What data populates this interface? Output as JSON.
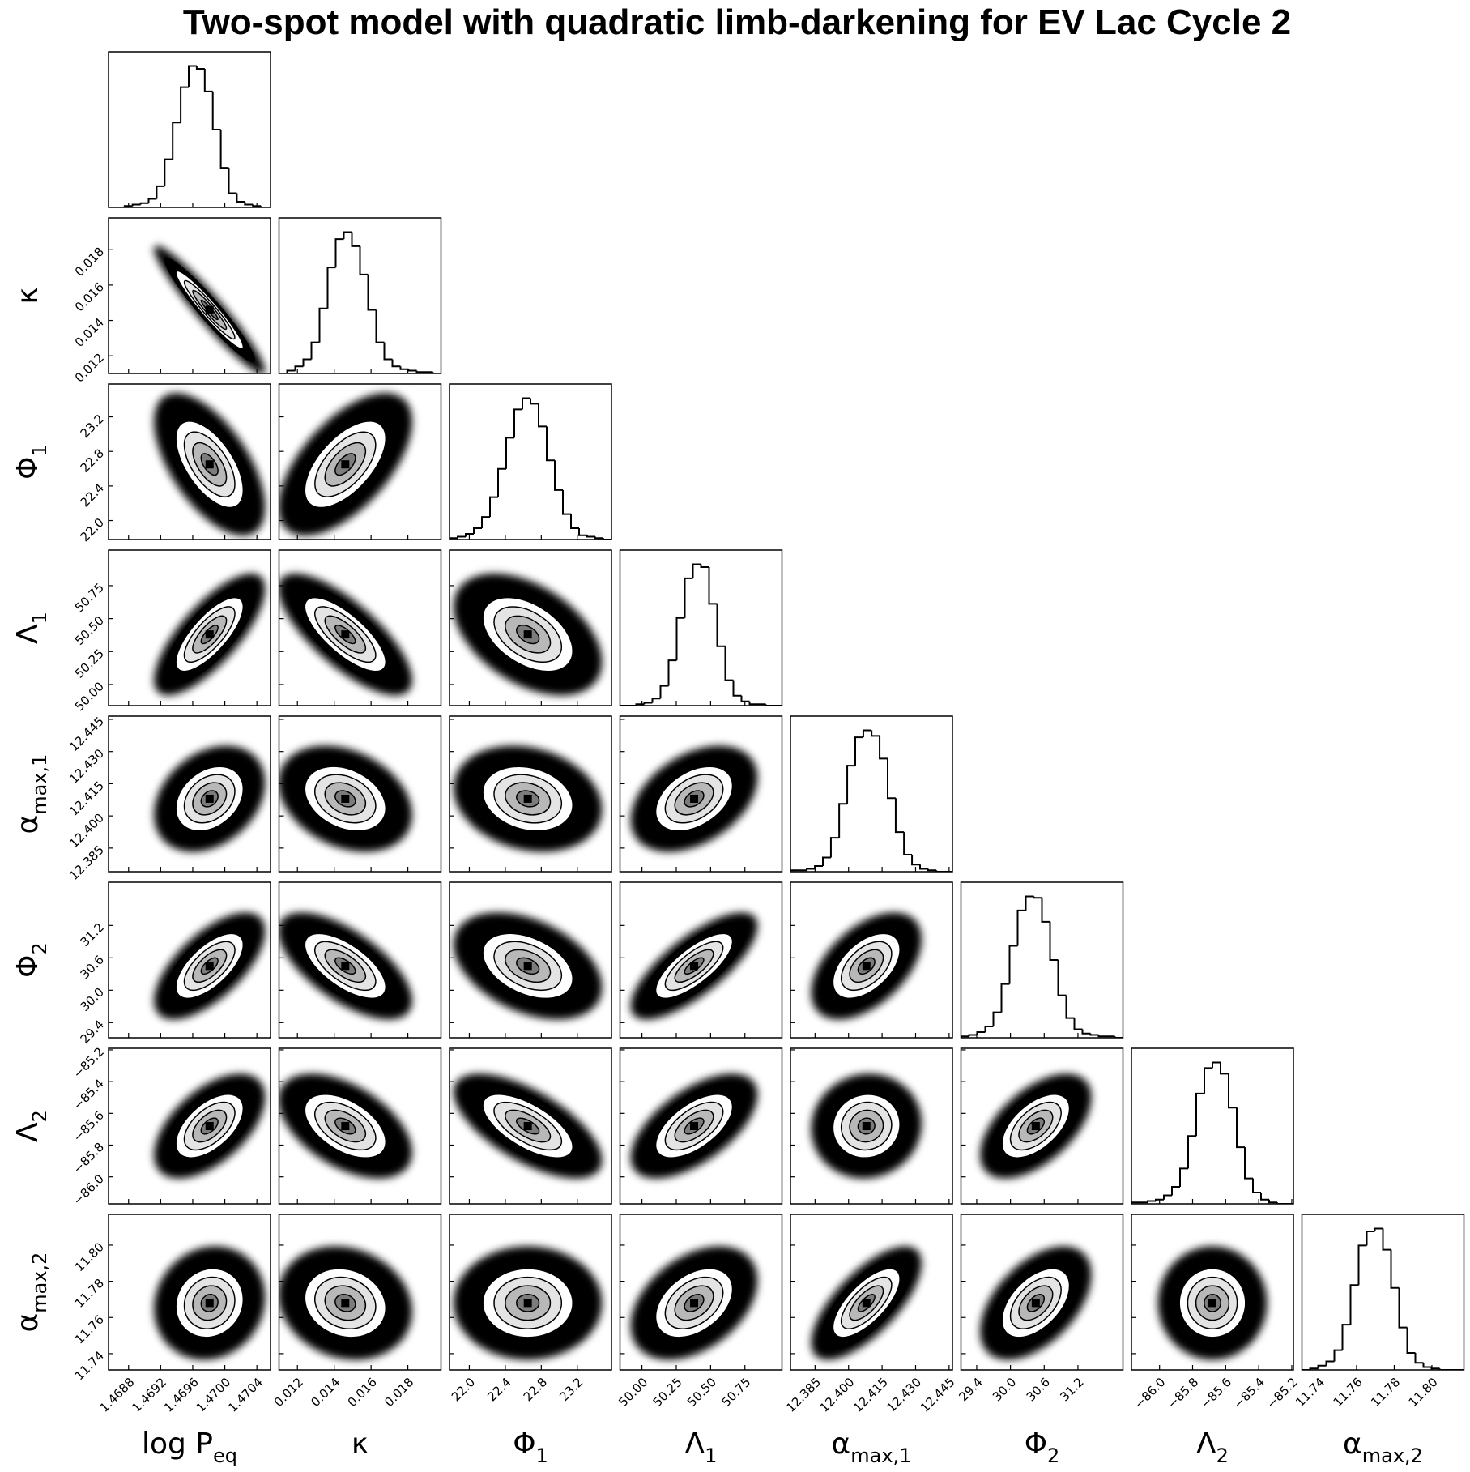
{
  "chart_data": {
    "type": "corner",
    "title": "Two-spot model with quadratic limb-darkening for EV Lac Cycle 2",
    "sigma_levels": [
      0.5,
      1,
      1.5,
      2
    ],
    "color": "#000000",
    "params": [
      {
        "label": {
          "main": "log P",
          "sub": "eq"
        },
        "lim": [
          1.46855,
          1.47057
        ],
        "ticks": [
          1.4688,
          1.4692,
          1.4696,
          {
            "value": 1.47,
            "label": "1.4700"
          },
          1.4704
        ],
        "mean": 1.46981,
        "std": 0.00021,
        "hist": {
          "bins": [
            1.46855,
            1.46865,
            1.46875,
            1.46885,
            1.46895,
            1.46905,
            1.46915,
            1.46925,
            1.46935,
            1.46945,
            1.46955,
            1.46965,
            1.46975,
            1.46985,
            1.46995,
            1.47005,
            1.47015,
            1.47025,
            1.47035,
            1.47045,
            1.47055
          ],
          "counts": [
            0,
            0,
            1,
            2,
            3,
            6,
            15,
            34,
            60,
            85,
            100,
            98,
            82,
            55,
            28,
            10,
            4,
            2,
            1,
            0
          ]
        }
      },
      {
        "label": {
          "main": "κ"
        },
        "lim": [
          0.011,
          0.0198
        ],
        "ticks": [
          0.012,
          0.014,
          0.016,
          0.018
        ],
        "mean": 0.0146,
        "std": 0.0011,
        "hist": {
          "bins": [
            0.011,
            0.01144,
            0.01188,
            0.01232,
            0.01276,
            0.0132,
            0.01364,
            0.01408,
            0.01452,
            0.01496,
            0.0154,
            0.01584,
            0.01628,
            0.01672,
            0.01716,
            0.0176,
            0.01804,
            0.01848,
            0.01892,
            0.01936,
            0.0198
          ],
          "counts": [
            0,
            2,
            5,
            10,
            22,
            46,
            75,
            95,
            100,
            90,
            70,
            45,
            22,
            10,
            5,
            3,
            2,
            1,
            1,
            0
          ]
        }
      },
      {
        "label": {
          "main": "Φ",
          "sub": "1"
        },
        "lim": [
          21.78,
          23.58
        ],
        "ticks": [
          {
            "value": 22,
            "label": "22.0"
          },
          22.4,
          22.8,
          23.2
        ],
        "mean": 22.65,
        "std": 0.25,
        "hist": {
          "bins": [
            21.78,
            21.87,
            21.96,
            22.05,
            22.14,
            22.23,
            22.32,
            22.41,
            22.5,
            22.59,
            22.68,
            22.77,
            22.86,
            22.95,
            23.04,
            23.13,
            23.22,
            23.31,
            23.4,
            23.49,
            23.58
          ],
          "counts": [
            1,
            2,
            4,
            8,
            16,
            30,
            50,
            72,
            92,
            100,
            96,
            80,
            56,
            35,
            18,
            8,
            3,
            2,
            1,
            0
          ]
        }
      },
      {
        "label": {
          "main": "Λ",
          "sub": "1"
        },
        "lim": [
          49.84,
          51.02
        ],
        "ticks": [
          {
            "value": 50,
            "label": "50.00"
          },
          50.25,
          {
            "value": 50.5,
            "label": "50.50"
          },
          50.75
        ],
        "mean": 50.38,
        "std": 0.14,
        "hist": {
          "bins": [
            49.84,
            49.899,
            49.958,
            50.017,
            50.076,
            50.135,
            50.194,
            50.253,
            50.312,
            50.371,
            50.43,
            50.489,
            50.548,
            50.607,
            50.666,
            50.725,
            50.784,
            50.843,
            50.902,
            50.961,
            51.02
          ],
          "counts": [
            0,
            0,
            1,
            2,
            5,
            14,
            32,
            62,
            90,
            100,
            98,
            72,
            42,
            18,
            7,
            3,
            1,
            1,
            0,
            0
          ]
        }
      },
      {
        "label": {
          "main": "α",
          "sub": "max,1"
        },
        "lim": [
          12.374,
          12.4465
        ],
        "ticks": [
          12.385,
          {
            "value": 12.4,
            "label": "12.400"
          },
          12.415,
          {
            "value": 12.43,
            "label": "12.430"
          },
          12.445
        ],
        "mean": 12.408,
        "std": 0.0075,
        "hist": {
          "bins": [
            12.374,
            12.3776,
            12.3813,
            12.3849,
            12.3885,
            12.3921,
            12.3958,
            12.3994,
            12.403,
            12.4066,
            12.4103,
            12.4139,
            12.4175,
            12.4211,
            12.4248,
            12.4284,
            12.432,
            12.4356,
            12.4393,
            12.4429,
            12.4465
          ],
          "counts": [
            1,
            1,
            2,
            4,
            10,
            24,
            48,
            75,
            95,
            100,
            96,
            80,
            52,
            28,
            12,
            5,
            2,
            1,
            0,
            0
          ]
        }
      },
      {
        "label": {
          "main": "Φ",
          "sub": "2"
        },
        "lim": [
          29.12,
          32.0
        ],
        "ticks": [
          29.4,
          {
            "value": 30,
            "label": "30.0"
          },
          30.6,
          31.2
        ],
        "mean": 30.45,
        "std": 0.3,
        "hist": {
          "bins": [
            29.12,
            29.264,
            29.408,
            29.552,
            29.696,
            29.84,
            29.984,
            30.128,
            30.272,
            30.416,
            30.56,
            30.704,
            30.848,
            30.992,
            31.136,
            31.28,
            31.424,
            31.568,
            31.712,
            31.856,
            32.0
          ],
          "counts": [
            1,
            2,
            4,
            8,
            18,
            38,
            65,
            90,
            100,
            99,
            82,
            55,
            30,
            14,
            6,
            3,
            2,
            1,
            1,
            0
          ]
        }
      },
      {
        "label": {
          "main": "Λ",
          "sub": "2"
        },
        "lim": [
          -86.17,
          -85.19
        ],
        "ticks": [
          {
            "value": -86,
            "label": "−86.0"
          },
          {
            "value": -85.8,
            "label": "−85.8"
          },
          {
            "value": -85.6,
            "label": "−85.6"
          },
          {
            "value": -85.4,
            "label": "−85.4"
          },
          {
            "value": -85.2,
            "label": "−85.2"
          }
        ],
        "mean": -85.68,
        "std": 0.1,
        "hist": {
          "bins": [
            -86.17,
            -86.121,
            -86.072,
            -86.023,
            -85.974,
            -85.925,
            -85.876,
            -85.827,
            -85.778,
            -85.729,
            -85.68,
            -85.631,
            -85.582,
            -85.533,
            -85.484,
            -85.435,
            -85.386,
            -85.337,
            -85.288,
            -85.239,
            -85.19
          ],
          "counts": [
            1,
            1,
            2,
            3,
            6,
            12,
            25,
            48,
            78,
            96,
            100,
            92,
            68,
            40,
            18,
            8,
            3,
            1,
            0,
            0
          ]
        }
      },
      {
        "label": {
          "main": "α",
          "sub": "max,2"
        },
        "lim": [
          11.731,
          11.817
        ],
        "ticks": [
          11.74,
          11.76,
          11.78,
          {
            "value": 11.8,
            "label": "11.80"
          }
        ],
        "mean": 11.768,
        "std": 0.0095,
        "hist": {
          "bins": [
            11.731,
            11.7353,
            11.7396,
            11.7439,
            11.7482,
            11.7525,
            11.7568,
            11.7611,
            11.7654,
            11.7697,
            11.774,
            11.7783,
            11.7826,
            11.7869,
            11.7912,
            11.7955,
            11.7998,
            11.8041,
            11.8084,
            11.8127,
            11.817
          ],
          "counts": [
            0,
            1,
            3,
            6,
            14,
            32,
            60,
            88,
            98,
            100,
            85,
            58,
            30,
            12,
            5,
            2,
            1,
            0,
            0,
            0
          ]
        }
      }
    ],
    "correlations": [
      [
        -0.95
      ],
      [
        -0.6,
        0.6
      ],
      [
        0.75,
        -0.75,
        -0.45
      ],
      [
        0.3,
        -0.3,
        -0.2,
        0.4
      ],
      [
        0.65,
        -0.65,
        -0.4,
        0.75,
        0.5
      ],
      [
        0.55,
        -0.5,
        -0.65,
        0.6,
        0.05,
        0.55
      ],
      [
        0.1,
        -0.15,
        0.0,
        0.4,
        0.7,
        0.5,
        0.0
      ]
    ]
  }
}
